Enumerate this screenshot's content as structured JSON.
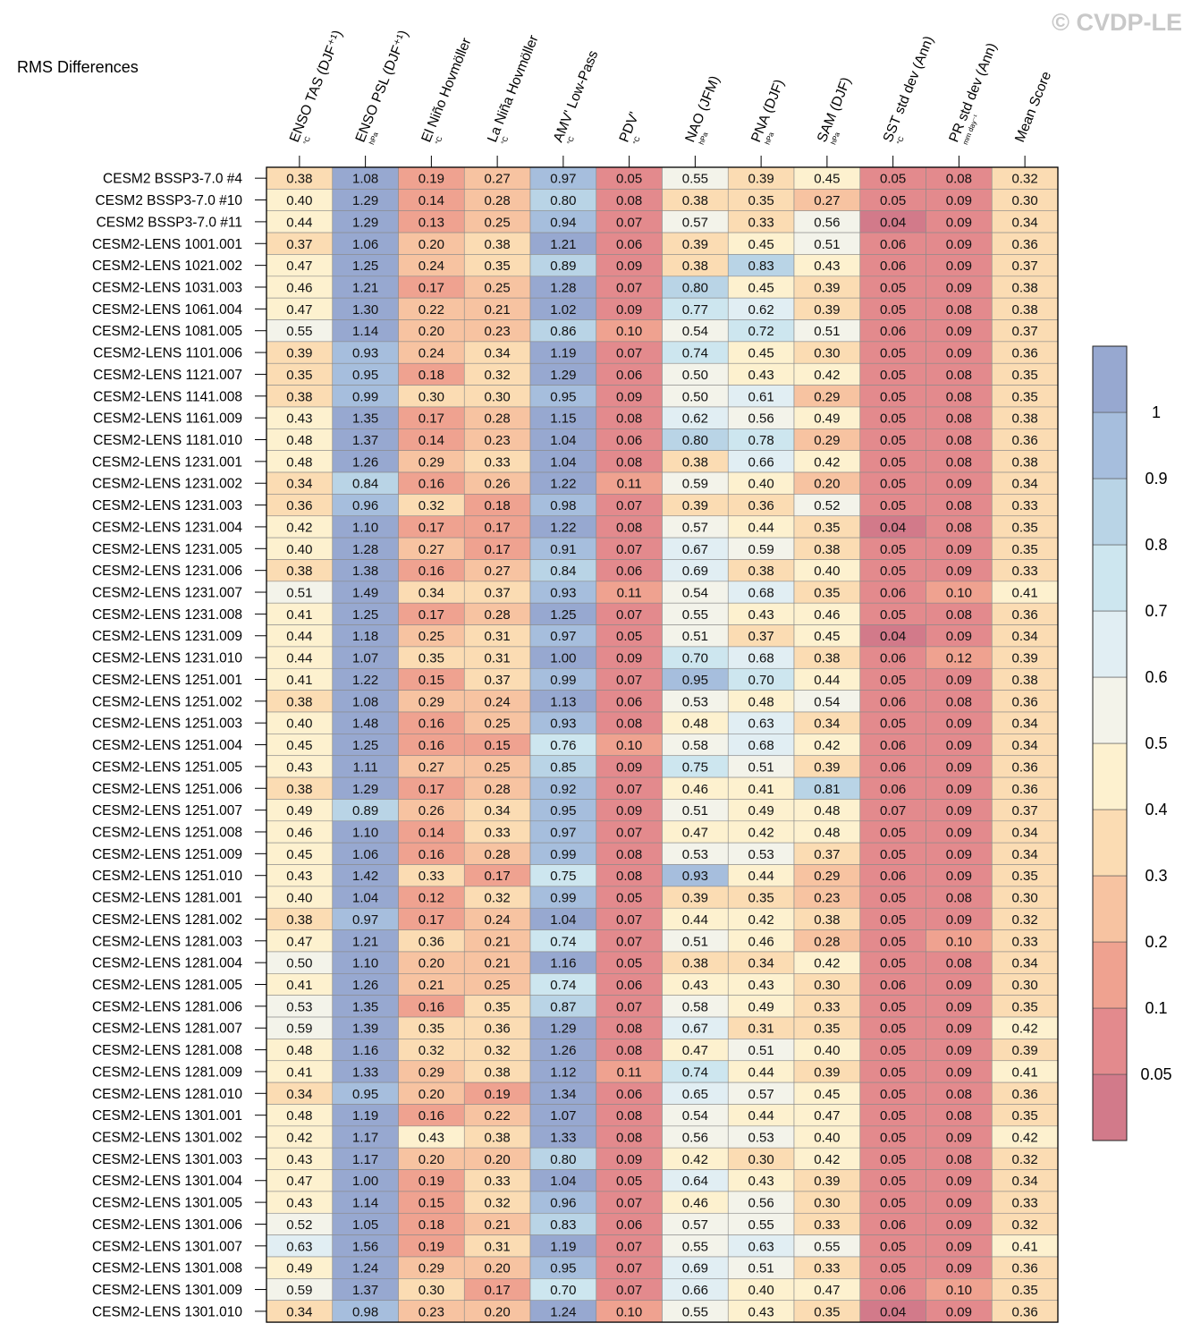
{
  "title": "RMS Differences",
  "watermark": "© CVDP-LE",
  "chart_data": {
    "type": "heatmap",
    "title": "RMS Differences",
    "columns": [
      {
        "label": "ENSO TAS (DJF⁺¹)",
        "unit": "°C"
      },
      {
        "label": "ENSO PSL (DJF⁺¹)",
        "unit": "hPa"
      },
      {
        "label": "El Niño Hovmöller",
        "unit": "°C"
      },
      {
        "label": "La Niña Hovmöller",
        "unit": "°C"
      },
      {
        "label": "AMV' Low-Pass",
        "unit": "°C"
      },
      {
        "label": "PDV'",
        "unit": "°C"
      },
      {
        "label": "NAO (JFM)",
        "unit": "hPa"
      },
      {
        "label": "PNA (DJF)",
        "unit": "hPa"
      },
      {
        "label": "SAM (DJF)",
        "unit": "hPa"
      },
      {
        "label": "SST std dev (Ann)",
        "unit": "°C"
      },
      {
        "label": "PR std dev (Ann)",
        "unit": "mm day⁻¹"
      },
      {
        "label": "Mean Score",
        "unit": ""
      }
    ],
    "rows": [
      "CESM2 BSSP3-7.0 #4",
      "CESM2 BSSP3-7.0 #10",
      "CESM2 BSSP3-7.0 #11",
      "CESM2-LENS 1001.001",
      "CESM2-LENS 1021.002",
      "CESM2-LENS 1031.003",
      "CESM2-LENS 1061.004",
      "CESM2-LENS 1081.005",
      "CESM2-LENS 1101.006",
      "CESM2-LENS 1121.007",
      "CESM2-LENS 1141.008",
      "CESM2-LENS 1161.009",
      "CESM2-LENS 1181.010",
      "CESM2-LENS 1231.001",
      "CESM2-LENS 1231.002",
      "CESM2-LENS 1231.003",
      "CESM2-LENS 1231.004",
      "CESM2-LENS 1231.005",
      "CESM2-LENS 1231.006",
      "CESM2-LENS 1231.007",
      "CESM2-LENS 1231.008",
      "CESM2-LENS 1231.009",
      "CESM2-LENS 1231.010",
      "CESM2-LENS 1251.001",
      "CESM2-LENS 1251.002",
      "CESM2-LENS 1251.003",
      "CESM2-LENS 1251.004",
      "CESM2-LENS 1251.005",
      "CESM2-LENS 1251.006",
      "CESM2-LENS 1251.007",
      "CESM2-LENS 1251.008",
      "CESM2-LENS 1251.009",
      "CESM2-LENS 1251.010",
      "CESM2-LENS 1281.001",
      "CESM2-LENS 1281.002",
      "CESM2-LENS 1281.003",
      "CESM2-LENS 1281.004",
      "CESM2-LENS 1281.005",
      "CESM2-LENS 1281.006",
      "CESM2-LENS 1281.007",
      "CESM2-LENS 1281.008",
      "CESM2-LENS 1281.009",
      "CESM2-LENS 1281.010",
      "CESM2-LENS 1301.001",
      "CESM2-LENS 1301.002",
      "CESM2-LENS 1301.003",
      "CESM2-LENS 1301.004",
      "CESM2-LENS 1301.005",
      "CESM2-LENS 1301.006",
      "CESM2-LENS 1301.007",
      "CESM2-LENS 1301.008",
      "CESM2-LENS 1301.009",
      "CESM2-LENS 1301.010"
    ],
    "values": [
      [
        "0.38",
        "1.08",
        "0.19",
        "0.27",
        "0.97",
        "0.05",
        "0.55",
        "0.39",
        "0.45",
        "0.05",
        "0.08",
        "0.32"
      ],
      [
        "0.40",
        "1.29",
        "0.14",
        "0.28",
        "0.80",
        "0.08",
        "0.38",
        "0.35",
        "0.27",
        "0.05",
        "0.09",
        "0.30"
      ],
      [
        "0.44",
        "1.29",
        "0.13",
        "0.25",
        "0.94",
        "0.07",
        "0.57",
        "0.33",
        "0.56",
        "0.04",
        "0.09",
        "0.34"
      ],
      [
        "0.37",
        "1.06",
        "0.20",
        "0.38",
        "1.21",
        "0.06",
        "0.39",
        "0.45",
        "0.51",
        "0.06",
        "0.09",
        "0.36"
      ],
      [
        "0.47",
        "1.25",
        "0.24",
        "0.35",
        "0.89",
        "0.09",
        "0.38",
        "0.83",
        "0.43",
        "0.06",
        "0.09",
        "0.37"
      ],
      [
        "0.46",
        "1.21",
        "0.17",
        "0.25",
        "1.28",
        "0.07",
        "0.80",
        "0.45",
        "0.39",
        "0.05",
        "0.09",
        "0.38"
      ],
      [
        "0.47",
        "1.30",
        "0.22",
        "0.21",
        "1.02",
        "0.09",
        "0.77",
        "0.62",
        "0.39",
        "0.05",
        "0.08",
        "0.38"
      ],
      [
        "0.55",
        "1.14",
        "0.20",
        "0.23",
        "0.86",
        "0.10",
        "0.54",
        "0.72",
        "0.51",
        "0.06",
        "0.09",
        "0.37"
      ],
      [
        "0.39",
        "0.93",
        "0.24",
        "0.34",
        "1.19",
        "0.07",
        "0.74",
        "0.45",
        "0.30",
        "0.05",
        "0.09",
        "0.36"
      ],
      [
        "0.35",
        "0.95",
        "0.18",
        "0.32",
        "1.29",
        "0.06",
        "0.50",
        "0.43",
        "0.42",
        "0.05",
        "0.08",
        "0.35"
      ],
      [
        "0.38",
        "0.99",
        "0.30",
        "0.30",
        "0.95",
        "0.09",
        "0.50",
        "0.61",
        "0.29",
        "0.05",
        "0.08",
        "0.35"
      ],
      [
        "0.43",
        "1.35",
        "0.17",
        "0.28",
        "1.15",
        "0.08",
        "0.62",
        "0.56",
        "0.49",
        "0.05",
        "0.08",
        "0.38"
      ],
      [
        "0.48",
        "1.37",
        "0.14",
        "0.23",
        "1.04",
        "0.06",
        "0.80",
        "0.78",
        "0.29",
        "0.05",
        "0.08",
        "0.36"
      ],
      [
        "0.48",
        "1.26",
        "0.29",
        "0.33",
        "1.04",
        "0.08",
        "0.38",
        "0.66",
        "0.42",
        "0.05",
        "0.08",
        "0.38"
      ],
      [
        "0.34",
        "0.84",
        "0.16",
        "0.26",
        "1.22",
        "0.11",
        "0.59",
        "0.40",
        "0.20",
        "0.05",
        "0.09",
        "0.34"
      ],
      [
        "0.36",
        "0.96",
        "0.32",
        "0.18",
        "0.98",
        "0.07",
        "0.39",
        "0.36",
        "0.52",
        "0.05",
        "0.08",
        "0.33"
      ],
      [
        "0.42",
        "1.10",
        "0.17",
        "0.17",
        "1.22",
        "0.08",
        "0.57",
        "0.44",
        "0.35",
        "0.04",
        "0.08",
        "0.35"
      ],
      [
        "0.40",
        "1.28",
        "0.27",
        "0.17",
        "0.91",
        "0.07",
        "0.67",
        "0.59",
        "0.38",
        "0.05",
        "0.09",
        "0.35"
      ],
      [
        "0.38",
        "1.38",
        "0.16",
        "0.27",
        "0.84",
        "0.06",
        "0.69",
        "0.38",
        "0.40",
        "0.05",
        "0.09",
        "0.33"
      ],
      [
        "0.51",
        "1.49",
        "0.34",
        "0.37",
        "0.93",
        "0.11",
        "0.54",
        "0.68",
        "0.35",
        "0.06",
        "0.10",
        "0.41"
      ],
      [
        "0.41",
        "1.25",
        "0.17",
        "0.28",
        "1.25",
        "0.07",
        "0.55",
        "0.43",
        "0.46",
        "0.05",
        "0.08",
        "0.36"
      ],
      [
        "0.44",
        "1.18",
        "0.25",
        "0.31",
        "0.97",
        "0.05",
        "0.51",
        "0.37",
        "0.45",
        "0.04",
        "0.09",
        "0.34"
      ],
      [
        "0.44",
        "1.07",
        "0.35",
        "0.31",
        "1.00",
        "0.09",
        "0.70",
        "0.68",
        "0.38",
        "0.06",
        "0.12",
        "0.39"
      ],
      [
        "0.41",
        "1.22",
        "0.15",
        "0.37",
        "0.99",
        "0.07",
        "0.95",
        "0.70",
        "0.44",
        "0.05",
        "0.09",
        "0.38"
      ],
      [
        "0.38",
        "1.08",
        "0.29",
        "0.24",
        "1.13",
        "0.06",
        "0.53",
        "0.48",
        "0.54",
        "0.06",
        "0.08",
        "0.36"
      ],
      [
        "0.40",
        "1.48",
        "0.16",
        "0.25",
        "0.93",
        "0.08",
        "0.48",
        "0.63",
        "0.34",
        "0.05",
        "0.09",
        "0.34"
      ],
      [
        "0.45",
        "1.25",
        "0.16",
        "0.15",
        "0.76",
        "0.10",
        "0.58",
        "0.68",
        "0.42",
        "0.06",
        "0.09",
        "0.34"
      ],
      [
        "0.43",
        "1.11",
        "0.27",
        "0.25",
        "0.85",
        "0.09",
        "0.75",
        "0.51",
        "0.39",
        "0.06",
        "0.09",
        "0.36"
      ],
      [
        "0.38",
        "1.29",
        "0.17",
        "0.28",
        "0.92",
        "0.07",
        "0.46",
        "0.41",
        "0.81",
        "0.06",
        "0.09",
        "0.36"
      ],
      [
        "0.49",
        "0.89",
        "0.26",
        "0.34",
        "0.95",
        "0.09",
        "0.51",
        "0.49",
        "0.48",
        "0.07",
        "0.09",
        "0.37"
      ],
      [
        "0.46",
        "1.10",
        "0.14",
        "0.33",
        "0.97",
        "0.07",
        "0.47",
        "0.42",
        "0.48",
        "0.05",
        "0.09",
        "0.34"
      ],
      [
        "0.45",
        "1.06",
        "0.16",
        "0.28",
        "0.99",
        "0.08",
        "0.53",
        "0.53",
        "0.37",
        "0.05",
        "0.09",
        "0.34"
      ],
      [
        "0.43",
        "1.42",
        "0.33",
        "0.17",
        "0.75",
        "0.08",
        "0.93",
        "0.44",
        "0.29",
        "0.06",
        "0.09",
        "0.35"
      ],
      [
        "0.40",
        "1.04",
        "0.12",
        "0.32",
        "0.99",
        "0.05",
        "0.39",
        "0.35",
        "0.23",
        "0.05",
        "0.08",
        "0.30"
      ],
      [
        "0.38",
        "0.97",
        "0.17",
        "0.24",
        "1.04",
        "0.07",
        "0.44",
        "0.42",
        "0.38",
        "0.05",
        "0.09",
        "0.32"
      ],
      [
        "0.47",
        "1.21",
        "0.36",
        "0.21",
        "0.74",
        "0.07",
        "0.51",
        "0.46",
        "0.28",
        "0.05",
        "0.10",
        "0.33"
      ],
      [
        "0.50",
        "1.10",
        "0.20",
        "0.21",
        "1.16",
        "0.05",
        "0.38",
        "0.34",
        "0.42",
        "0.05",
        "0.08",
        "0.34"
      ],
      [
        "0.41",
        "1.26",
        "0.21",
        "0.25",
        "0.74",
        "0.06",
        "0.43",
        "0.43",
        "0.30",
        "0.06",
        "0.09",
        "0.30"
      ],
      [
        "0.53",
        "1.35",
        "0.16",
        "0.35",
        "0.87",
        "0.07",
        "0.58",
        "0.49",
        "0.33",
        "0.05",
        "0.09",
        "0.35"
      ],
      [
        "0.59",
        "1.39",
        "0.35",
        "0.36",
        "1.29",
        "0.08",
        "0.67",
        "0.31",
        "0.35",
        "0.05",
        "0.09",
        "0.42"
      ],
      [
        "0.48",
        "1.16",
        "0.32",
        "0.32",
        "1.26",
        "0.08",
        "0.47",
        "0.51",
        "0.40",
        "0.05",
        "0.09",
        "0.39"
      ],
      [
        "0.41",
        "1.33",
        "0.29",
        "0.38",
        "1.12",
        "0.11",
        "0.74",
        "0.44",
        "0.39",
        "0.05",
        "0.09",
        "0.41"
      ],
      [
        "0.34",
        "0.95",
        "0.20",
        "0.19",
        "1.34",
        "0.06",
        "0.65",
        "0.57",
        "0.45",
        "0.05",
        "0.08",
        "0.36"
      ],
      [
        "0.48",
        "1.19",
        "0.16",
        "0.22",
        "1.07",
        "0.08",
        "0.54",
        "0.44",
        "0.47",
        "0.05",
        "0.08",
        "0.35"
      ],
      [
        "0.42",
        "1.17",
        "0.43",
        "0.38",
        "1.33",
        "0.08",
        "0.56",
        "0.53",
        "0.40",
        "0.05",
        "0.09",
        "0.42"
      ],
      [
        "0.43",
        "1.17",
        "0.20",
        "0.20",
        "0.80",
        "0.09",
        "0.42",
        "0.30",
        "0.42",
        "0.05",
        "0.08",
        "0.32"
      ],
      [
        "0.47",
        "1.00",
        "0.19",
        "0.33",
        "1.04",
        "0.05",
        "0.64",
        "0.43",
        "0.39",
        "0.05",
        "0.09",
        "0.34"
      ],
      [
        "0.43",
        "1.14",
        "0.15",
        "0.32",
        "0.96",
        "0.07",
        "0.46",
        "0.56",
        "0.30",
        "0.05",
        "0.09",
        "0.33"
      ],
      [
        "0.52",
        "1.05",
        "0.18",
        "0.21",
        "0.83",
        "0.06",
        "0.57",
        "0.55",
        "0.33",
        "0.06",
        "0.09",
        "0.32"
      ],
      [
        "0.63",
        "1.56",
        "0.19",
        "0.31",
        "1.19",
        "0.07",
        "0.55",
        "0.63",
        "0.55",
        "0.05",
        "0.09",
        "0.41"
      ],
      [
        "0.49",
        "1.24",
        "0.29",
        "0.20",
        "0.95",
        "0.07",
        "0.69",
        "0.51",
        "0.33",
        "0.05",
        "0.09",
        "0.36"
      ],
      [
        "0.59",
        "1.37",
        "0.30",
        "0.17",
        "0.70",
        "0.07",
        "0.66",
        "0.40",
        "0.47",
        "0.06",
        "0.10",
        "0.35"
      ],
      [
        "0.34",
        "0.98",
        "0.23",
        "0.20",
        "1.24",
        "0.10",
        "0.55",
        "0.43",
        "0.35",
        "0.04",
        "0.09",
        "0.36"
      ]
    ],
    "colorbar": {
      "levels": [
        0.05,
        0.1,
        0.2,
        0.3,
        0.4,
        0.5,
        0.6,
        0.7,
        0.8,
        0.9,
        1
      ],
      "tick_labels": [
        "0.05",
        "0.1",
        "0.2",
        "0.3",
        "0.4",
        "0.5",
        "0.6",
        "0.7",
        "0.8",
        "0.9",
        "1"
      ],
      "colors": [
        "#d27a8a",
        "#e38a8d",
        "#efa290",
        "#f7c3a1",
        "#fbdcb3",
        "#fdf1cf",
        "#f3f3ea",
        "#e1eef3",
        "#cde6ef",
        "#b9d4e6",
        "#a6bedd",
        "#97a8d0"
      ]
    }
  }
}
